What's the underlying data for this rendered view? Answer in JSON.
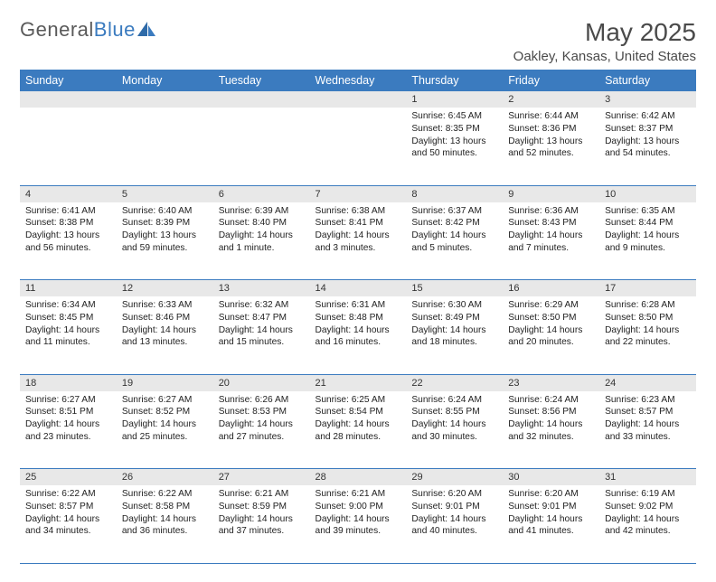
{
  "logo": {
    "text1": "General",
    "text2": "Blue"
  },
  "title": "May 2025",
  "location": "Oakley, Kansas, United States",
  "colors": {
    "header_bg": "#3b7bbf",
    "header_text": "#ffffff",
    "daynum_bg": "#e8e8e8",
    "rule": "#3b7bbf",
    "logo_gray": "#5a5a5a",
    "logo_blue": "#3b7bbf",
    "body_text": "#222222",
    "page_bg": "#ffffff"
  },
  "typography": {
    "title_fontsize": 28,
    "location_fontsize": 15,
    "weekday_fontsize": 12.5,
    "daynum_fontsize": 11,
    "body_fontsize": 10.2
  },
  "weekdays": [
    "Sunday",
    "Monday",
    "Tuesday",
    "Wednesday",
    "Thursday",
    "Friday",
    "Saturday"
  ],
  "weeks": [
    {
      "nums": [
        "",
        "",
        "",
        "",
        "1",
        "2",
        "3"
      ],
      "cells": [
        null,
        null,
        null,
        null,
        {
          "sunrise": "6:45 AM",
          "sunset": "8:35 PM",
          "daylight": "13 hours and 50 minutes."
        },
        {
          "sunrise": "6:44 AM",
          "sunset": "8:36 PM",
          "daylight": "13 hours and 52 minutes."
        },
        {
          "sunrise": "6:42 AM",
          "sunset": "8:37 PM",
          "daylight": "13 hours and 54 minutes."
        }
      ]
    },
    {
      "nums": [
        "4",
        "5",
        "6",
        "7",
        "8",
        "9",
        "10"
      ],
      "cells": [
        {
          "sunrise": "6:41 AM",
          "sunset": "8:38 PM",
          "daylight": "13 hours and 56 minutes."
        },
        {
          "sunrise": "6:40 AM",
          "sunset": "8:39 PM",
          "daylight": "13 hours and 59 minutes."
        },
        {
          "sunrise": "6:39 AM",
          "sunset": "8:40 PM",
          "daylight": "14 hours and 1 minute."
        },
        {
          "sunrise": "6:38 AM",
          "sunset": "8:41 PM",
          "daylight": "14 hours and 3 minutes."
        },
        {
          "sunrise": "6:37 AM",
          "sunset": "8:42 PM",
          "daylight": "14 hours and 5 minutes."
        },
        {
          "sunrise": "6:36 AM",
          "sunset": "8:43 PM",
          "daylight": "14 hours and 7 minutes."
        },
        {
          "sunrise": "6:35 AM",
          "sunset": "8:44 PM",
          "daylight": "14 hours and 9 minutes."
        }
      ]
    },
    {
      "nums": [
        "11",
        "12",
        "13",
        "14",
        "15",
        "16",
        "17"
      ],
      "cells": [
        {
          "sunrise": "6:34 AM",
          "sunset": "8:45 PM",
          "daylight": "14 hours and 11 minutes."
        },
        {
          "sunrise": "6:33 AM",
          "sunset": "8:46 PM",
          "daylight": "14 hours and 13 minutes."
        },
        {
          "sunrise": "6:32 AM",
          "sunset": "8:47 PM",
          "daylight": "14 hours and 15 minutes."
        },
        {
          "sunrise": "6:31 AM",
          "sunset": "8:48 PM",
          "daylight": "14 hours and 16 minutes."
        },
        {
          "sunrise": "6:30 AM",
          "sunset": "8:49 PM",
          "daylight": "14 hours and 18 minutes."
        },
        {
          "sunrise": "6:29 AM",
          "sunset": "8:50 PM",
          "daylight": "14 hours and 20 minutes."
        },
        {
          "sunrise": "6:28 AM",
          "sunset": "8:50 PM",
          "daylight": "14 hours and 22 minutes."
        }
      ]
    },
    {
      "nums": [
        "18",
        "19",
        "20",
        "21",
        "22",
        "23",
        "24"
      ],
      "cells": [
        {
          "sunrise": "6:27 AM",
          "sunset": "8:51 PM",
          "daylight": "14 hours and 23 minutes."
        },
        {
          "sunrise": "6:27 AM",
          "sunset": "8:52 PM",
          "daylight": "14 hours and 25 minutes."
        },
        {
          "sunrise": "6:26 AM",
          "sunset": "8:53 PM",
          "daylight": "14 hours and 27 minutes."
        },
        {
          "sunrise": "6:25 AM",
          "sunset": "8:54 PM",
          "daylight": "14 hours and 28 minutes."
        },
        {
          "sunrise": "6:24 AM",
          "sunset": "8:55 PM",
          "daylight": "14 hours and 30 minutes."
        },
        {
          "sunrise": "6:24 AM",
          "sunset": "8:56 PM",
          "daylight": "14 hours and 32 minutes."
        },
        {
          "sunrise": "6:23 AM",
          "sunset": "8:57 PM",
          "daylight": "14 hours and 33 minutes."
        }
      ]
    },
    {
      "nums": [
        "25",
        "26",
        "27",
        "28",
        "29",
        "30",
        "31"
      ],
      "cells": [
        {
          "sunrise": "6:22 AM",
          "sunset": "8:57 PM",
          "daylight": "14 hours and 34 minutes."
        },
        {
          "sunrise": "6:22 AM",
          "sunset": "8:58 PM",
          "daylight": "14 hours and 36 minutes."
        },
        {
          "sunrise": "6:21 AM",
          "sunset": "8:59 PM",
          "daylight": "14 hours and 37 minutes."
        },
        {
          "sunrise": "6:21 AM",
          "sunset": "9:00 PM",
          "daylight": "14 hours and 39 minutes."
        },
        {
          "sunrise": "6:20 AM",
          "sunset": "9:01 PM",
          "daylight": "14 hours and 40 minutes."
        },
        {
          "sunrise": "6:20 AM",
          "sunset": "9:01 PM",
          "daylight": "14 hours and 41 minutes."
        },
        {
          "sunrise": "6:19 AM",
          "sunset": "9:02 PM",
          "daylight": "14 hours and 42 minutes."
        }
      ]
    }
  ],
  "labels": {
    "sunrise": "Sunrise: ",
    "sunset": "Sunset: ",
    "daylight": "Daylight: "
  }
}
